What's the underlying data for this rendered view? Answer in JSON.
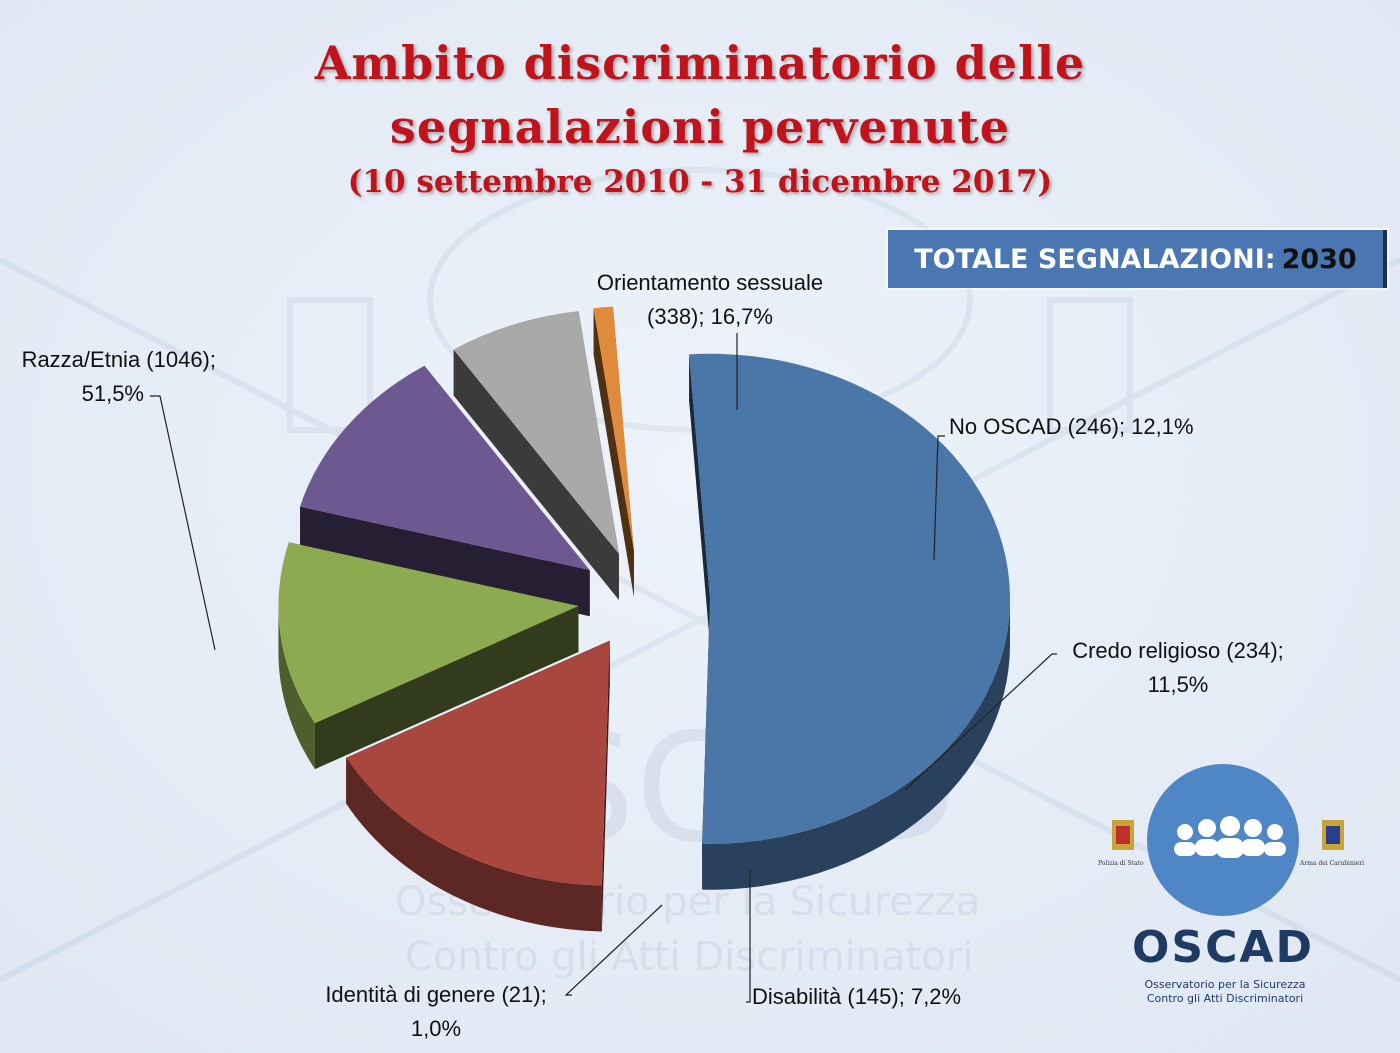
{
  "title_line1": "Ambito discriminatorio delle",
  "title_line2": "segnalazioni pervenute",
  "subtitle": "(10 settembre 2010 - 31 dicembre 2017)",
  "total": {
    "label": "TOTALE SEGNALAZIONI:",
    "value": "2030"
  },
  "chart_data": {
    "type": "pie",
    "title": "Ambito discriminatorio delle segnalazioni pervenute",
    "subtitle": "(10 settembre 2010 - 31 dicembre 2017)",
    "style": "3d exploded",
    "legend": "none",
    "slices": [
      {
        "name": "Razza/Etnia",
        "value": 1046,
        "percent": 51.5,
        "color": "#4a76a8",
        "label_line1": "Razza/Etnia (1046);",
        "label_line2": "51,5%"
      },
      {
        "name": "Orientamento sessuale",
        "value": 338,
        "percent": 16.7,
        "color": "#a9473f",
        "label_line1": "Orientamento sessuale",
        "label_line2": "(338); 16,7%"
      },
      {
        "name": "No OSCAD",
        "value": 246,
        "percent": 12.1,
        "color": "#8eaa50",
        "label_line1": "No OSCAD (246); 12,1%",
        "label_line2": ""
      },
      {
        "name": "Credo religioso",
        "value": 234,
        "percent": 11.5,
        "color": "#6d5891",
        "label_line1": "Credo religioso (234);",
        "label_line2": "11,5%"
      },
      {
        "name": "Disabilità",
        "value": 145,
        "percent": 7.2,
        "color": "#a9a9a9",
        "label_line1": "Disabilità (145); 7,2%",
        "label_line2": ""
      },
      {
        "name": "Identità di genere",
        "value": 21,
        "percent": 1.0,
        "color": "#e08a3c",
        "label_line1": "Identità di genere (21);",
        "label_line2": "1,0%"
      }
    ]
  },
  "logo": {
    "name": "OSCAD",
    "subtitle_line1": "Osservatorio per la Sicurezza",
    "subtitle_line2": "Contro gli Atti Discriminatori",
    "left_emblem_caption": "Polizia di Stato",
    "right_emblem_caption": "Arma dei Carabinieri",
    "color": "#4e86c6"
  }
}
